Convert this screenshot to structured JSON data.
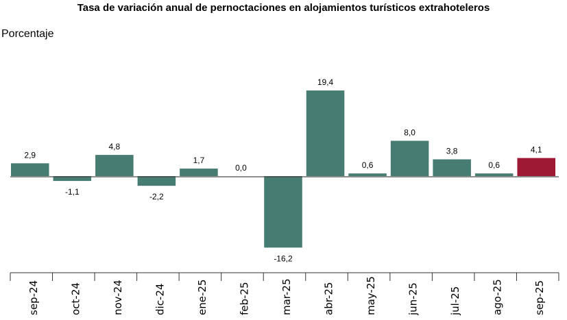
{
  "chart_data": {
    "type": "bar",
    "title": "Tasa de variación anual de pernoctaciones en alojamientos turísticos extrahoteleros",
    "ylabel": "Porcentaje",
    "xlabel": "",
    "categories": [
      "sep-24",
      "oct-24",
      "nov-24",
      "dic-24",
      "ene-25",
      "feb-25",
      "mar-25",
      "abr-25",
      "may-25",
      "jun-25",
      "jul-25",
      "ago-25",
      "sep-25"
    ],
    "values": [
      2.9,
      -1.1,
      4.8,
      -2.2,
      1.7,
      0.0,
      -16.2,
      19.4,
      0.6,
      8.0,
      3.8,
      0.6,
      4.1
    ],
    "data_labels": [
      "2,9",
      "-1,1",
      "4,8",
      "-2,2",
      "1,7",
      "0,0",
      "-16,2",
      "19,4",
      "0,6",
      "8,0",
      "3,8",
      "0,6",
      "4,1"
    ],
    "grid": false,
    "legend": "none",
    "colors": {
      "default": "#467c72",
      "highlight": "#9e1934",
      "zero_line": "#8a8a8a"
    },
    "highlight_index": 12
  }
}
